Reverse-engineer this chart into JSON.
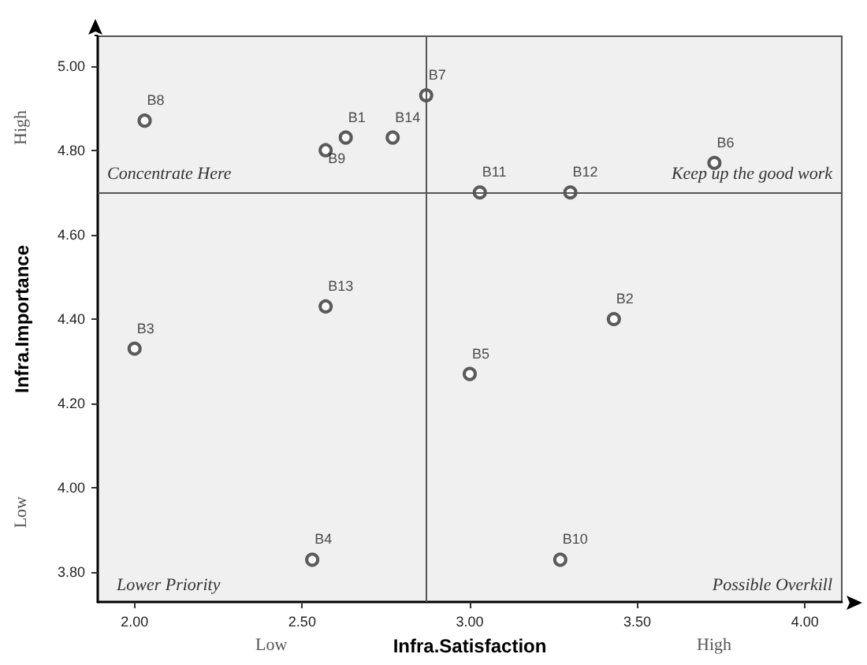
{
  "chart_data": {
    "type": "scatter",
    "xlabel": "Infra.Satisfaction",
    "ylabel": "Infra.Importance",
    "series": [
      {
        "name": "B1",
        "color": "#333333",
        "x": [
          2.63
        ],
        "values": [
          4.83
        ]
      },
      {
        "name": "B2",
        "color": "#333333",
        "x": [
          3.43
        ],
        "values": [
          4.4
        ]
      },
      {
        "name": "B3",
        "color": "#333333",
        "x": [
          2.0
        ],
        "values": [
          4.33
        ]
      },
      {
        "name": "B4",
        "color": "#333333",
        "x": [
          2.53
        ],
        "values": [
          3.83
        ]
      },
      {
        "name": "B5",
        "color": "#333333",
        "x": [
          3.0
        ],
        "values": [
          4.27
        ]
      },
      {
        "name": "B6",
        "color": "#333333",
        "x": [
          3.73
        ],
        "values": [
          4.77
        ]
      },
      {
        "name": "B7",
        "color": "#333333",
        "x": [
          2.87
        ],
        "values": [
          4.93
        ]
      },
      {
        "name": "B8",
        "color": "#333333",
        "x": [
          2.03
        ],
        "values": [
          4.87
        ]
      },
      {
        "name": "B9",
        "color": "#333333",
        "x": [
          2.57
        ],
        "values": [
          4.8
        ]
      },
      {
        "name": "B10",
        "color": "#333333",
        "x": [
          3.27
        ],
        "values": [
          3.83
        ]
      },
      {
        "name": "B11",
        "color": "#333333",
        "x": [
          3.03
        ],
        "values": [
          4.7
        ]
      },
      {
        "name": "B12",
        "color": "#333333",
        "x": [
          3.3
        ],
        "values": [
          4.7
        ]
      },
      {
        "name": "B13",
        "color": "#333333",
        "x": [
          2.57
        ],
        "values": [
          4.43
        ]
      },
      {
        "name": "B14",
        "color": "#333333",
        "x": [
          2.77
        ],
        "values": [
          4.83
        ]
      }
    ],
    "xlim": [
      1.89,
      4.11
    ],
    "xticks": [
      {
        "value": 2,
        "label": "2.00"
      },
      {
        "value": 2.5,
        "label": "2.50"
      },
      {
        "value": 3,
        "label": "3.00"
      },
      {
        "value": 3.5,
        "label": "3.50"
      },
      {
        "value": 4,
        "label": "4.00"
      }
    ],
    "ylim": [
      3.73,
      5.07
    ],
    "yticks": [
      {
        "value": 3.8,
        "label": "3.80"
      },
      {
        "value": 4,
        "label": "4.00"
      },
      {
        "value": 4.2,
        "label": "4.20"
      },
      {
        "value": 4.4,
        "label": "4.40"
      },
      {
        "value": 4.6,
        "label": "4.60"
      },
      {
        "value": 4.8,
        "label": "4.80"
      },
      {
        "value": 5,
        "label": "5.00"
      }
    ],
    "ref_lines": [
      {
        "axis": "x",
        "value": 2.87,
        "color": "#555555"
      },
      {
        "axis": "y",
        "value": 4.7,
        "color": "#555555"
      }
    ],
    "annotations": [
      "Concentrate Here",
      "Keep up the good work",
      "Lower Priority",
      "Possible Overkill",
      "High",
      "Low",
      "Low",
      "High"
    ],
    "grid": false,
    "legend": false,
    "marker": "circle"
  }
}
